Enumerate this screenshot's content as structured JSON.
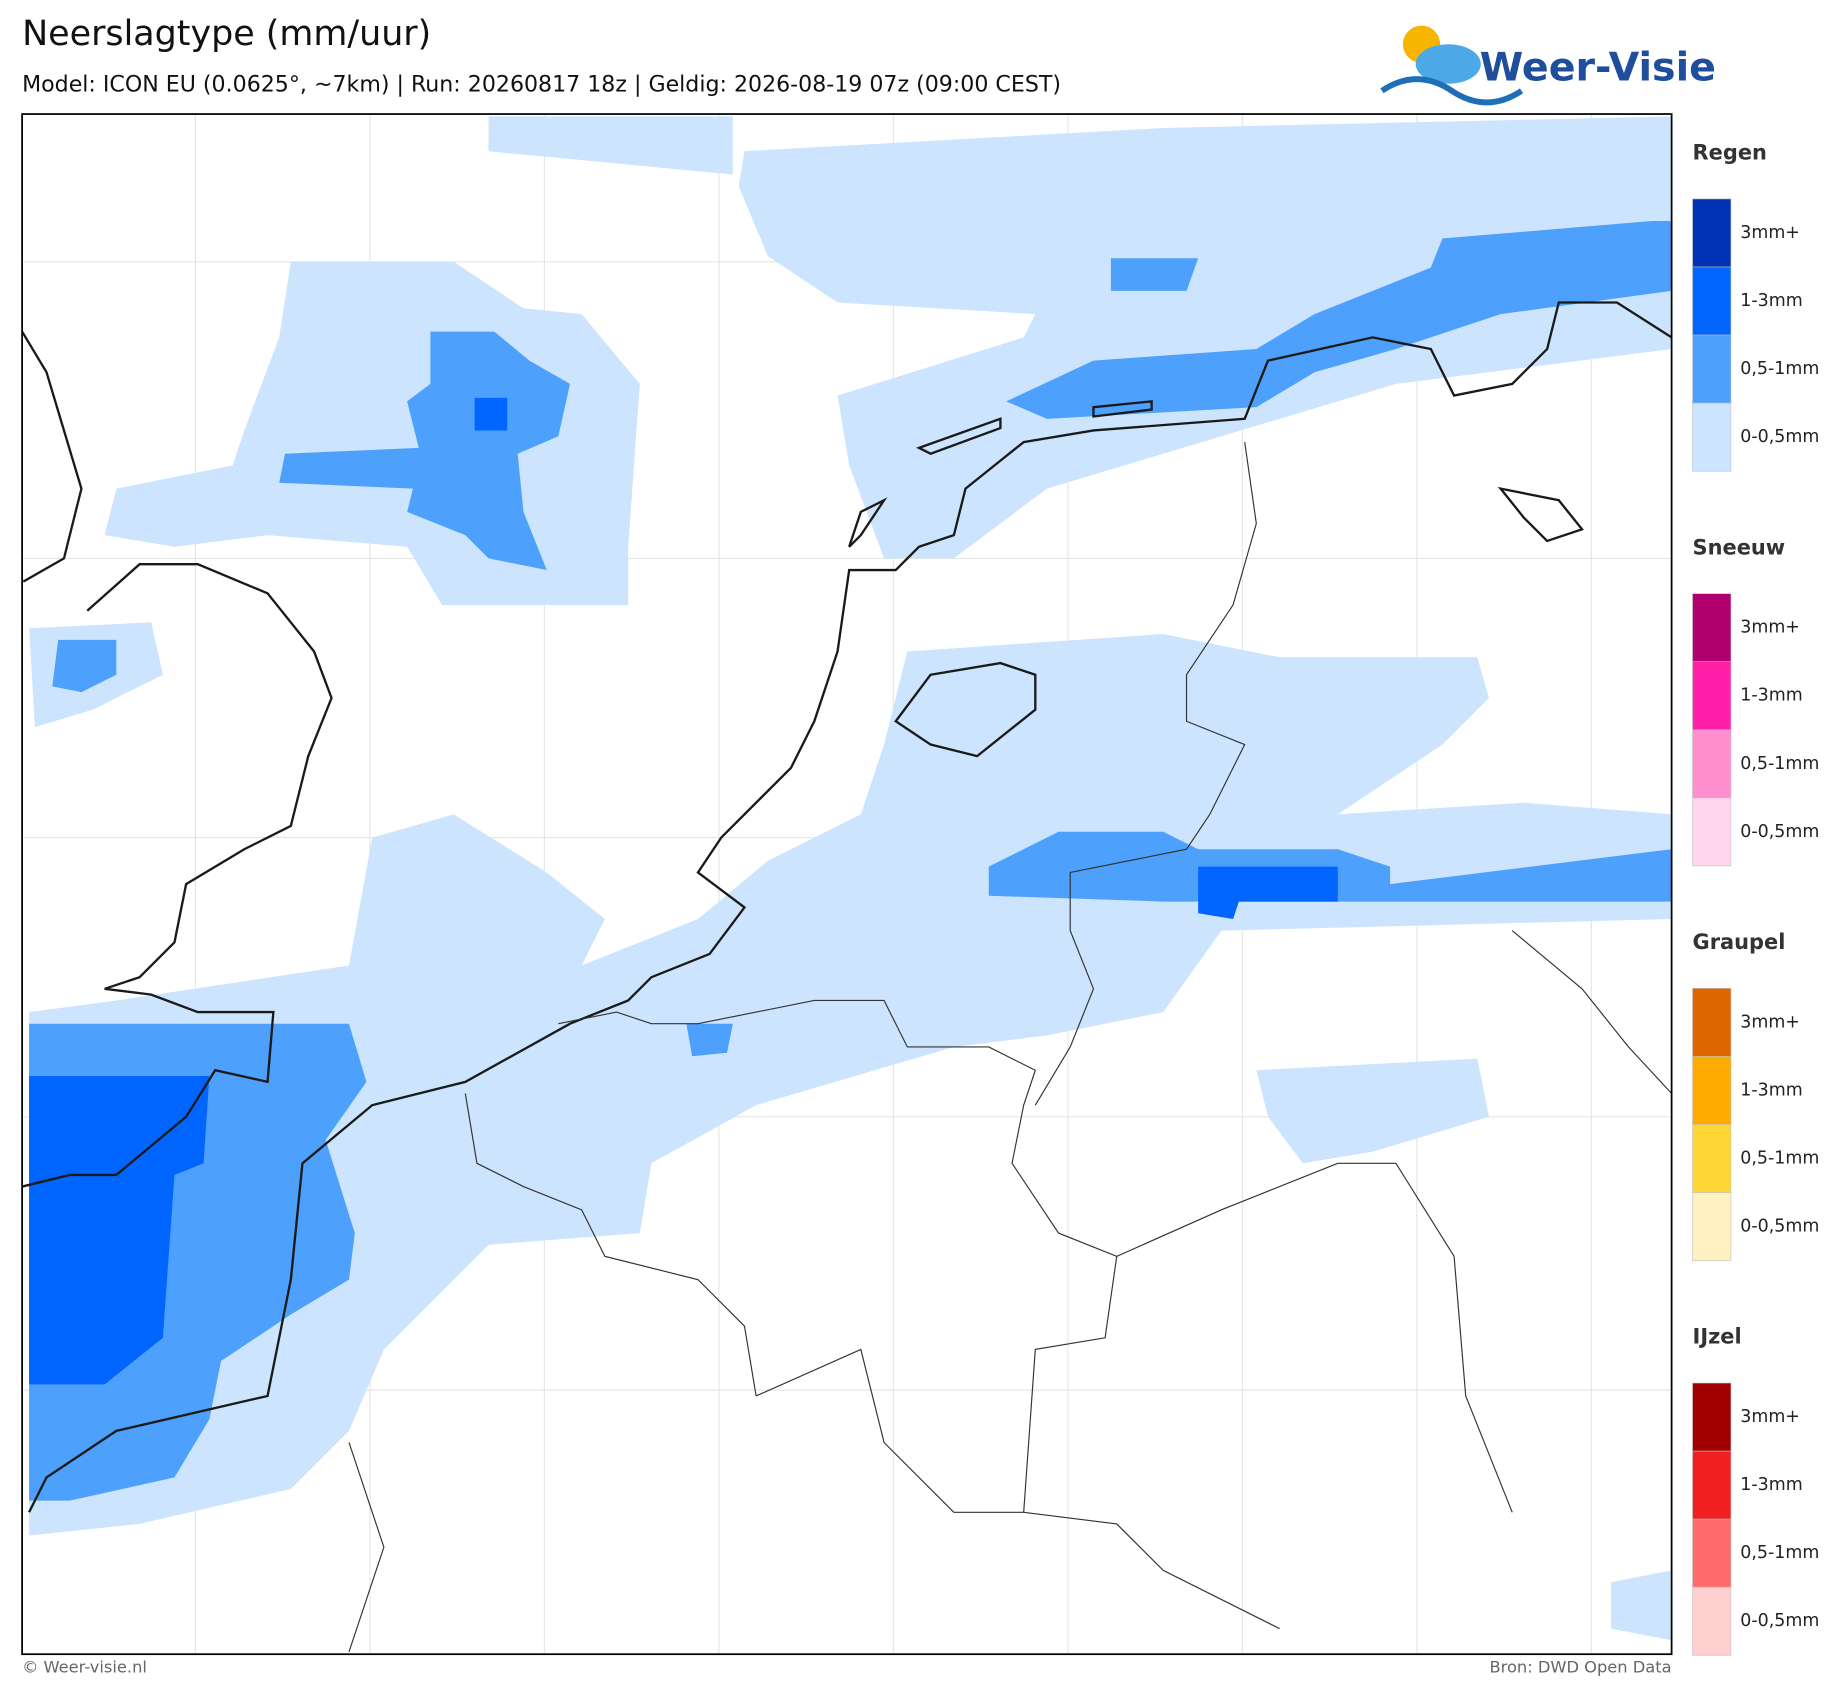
{
  "header": {
    "title": "Neerslagtype (mm/uur)",
    "subtitle": "Model: ICON EU (0.0625°, ~7km)  |  Run: 20260817 18z  |  Geldig: 2026-08-19 07z (09:00 CEST)"
  },
  "logo": {
    "text": "Weer-Visie"
  },
  "legend": [
    {
      "title": "Regen",
      "items": [
        {
          "label": "3mm+",
          "color": "#0033b3"
        },
        {
          "label": "1-3mm",
          "color": "#0066ff"
        },
        {
          "label": "0,5-1mm",
          "color": "#4da0fb"
        },
        {
          "label": "0-0,5mm",
          "color": "#cce4fd"
        }
      ]
    },
    {
      "title": "Sneeuw",
      "items": [
        {
          "label": "3mm+",
          "color": "#b0006e"
        },
        {
          "label": "1-3mm",
          "color": "#ff1fa8"
        },
        {
          "label": "0,5-1mm",
          "color": "#ff8fcf"
        },
        {
          "label": "0-0,5mm",
          "color": "#ffd6ee"
        }
      ]
    },
    {
      "title": "Graupel",
      "items": [
        {
          "label": "3mm+",
          "color": "#e06600"
        },
        {
          "label": "1-3mm",
          "color": "#ffaa00"
        },
        {
          "label": "0,5-1mm",
          "color": "#ffd633"
        },
        {
          "label": "0-0,5mm",
          "color": "#fff2c2"
        }
      ]
    },
    {
      "title": "IJzel",
      "items": [
        {
          "label": "3mm+",
          "color": "#a30000"
        },
        {
          "label": "1-3mm",
          "color": "#f02020"
        },
        {
          "label": "0,5-1mm",
          "color": "#ff6b6b"
        },
        {
          "label": "0-0,5mm",
          "color": "#ffd0d0"
        }
      ]
    }
  ],
  "footer": {
    "left": "© Weer-visie.nl",
    "right": "Bron: DWD Open Data"
  }
}
